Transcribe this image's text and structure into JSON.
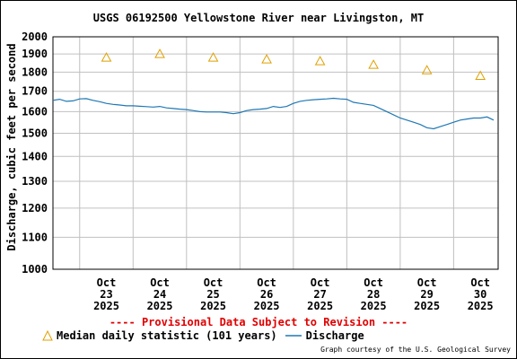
{
  "chart_data": {
    "type": "line",
    "title": "USGS 06192500 Yellowstone River near Livingston, MT",
    "ylabel": "Discharge, cubic feet per second",
    "xlabel": "",
    "y_scale": "log",
    "ylim": [
      1000,
      2000
    ],
    "y_ticks": [
      1000,
      1100,
      1200,
      1300,
      1400,
      1500,
      1600,
      1700,
      1800,
      1900,
      2000
    ],
    "x_ticks": [
      {
        "date": "Oct 23 2025",
        "month": "Oct",
        "day": "23",
        "year": "2025"
      },
      {
        "date": "Oct 24 2025",
        "month": "Oct",
        "day": "24",
        "year": "2025"
      },
      {
        "date": "Oct 25 2025",
        "month": "Oct",
        "day": "25",
        "year": "2025"
      },
      {
        "date": "Oct 26 2025",
        "month": "Oct",
        "day": "26",
        "year": "2025"
      },
      {
        "date": "Oct 27 2025",
        "month": "Oct",
        "day": "27",
        "year": "2025"
      },
      {
        "date": "Oct 28 2025",
        "month": "Oct",
        "day": "28",
        "year": "2025"
      },
      {
        "date": "Oct 29 2025",
        "month": "Oct",
        "day": "29",
        "year": "2025"
      },
      {
        "date": "Oct 30 2025",
        "month": "Oct",
        "day": "30",
        "year": "2025"
      }
    ],
    "grid": true,
    "series": [
      {
        "name": "Median daily statistic (101 years)",
        "kind": "scatter",
        "marker": "triangle",
        "color": "#e0a000",
        "x": [
          "2025-10-23 12:00",
          "2025-10-24 12:00",
          "2025-10-25 12:00",
          "2025-10-26 12:00",
          "2025-10-27 12:00",
          "2025-10-28 12:00",
          "2025-10-29 12:00",
          "2025-10-30 12:00"
        ],
        "values": [
          1880,
          1900,
          1880,
          1870,
          1860,
          1840,
          1810,
          1780
        ]
      },
      {
        "name": "Discharge",
        "kind": "line",
        "color": "#1f78b4",
        "x": [
          "2025-10-22 12:00",
          "2025-10-22 15:00",
          "2025-10-22 18:00",
          "2025-10-22 21:00",
          "2025-10-23 00:00",
          "2025-10-23 03:00",
          "2025-10-23 06:00",
          "2025-10-23 09:00",
          "2025-10-23 12:00",
          "2025-10-23 15:00",
          "2025-10-23 18:00",
          "2025-10-23 21:00",
          "2025-10-24 00:00",
          "2025-10-24 03:00",
          "2025-10-24 06:00",
          "2025-10-24 09:00",
          "2025-10-24 12:00",
          "2025-10-24 15:00",
          "2025-10-24 18:00",
          "2025-10-24 21:00",
          "2025-10-25 00:00",
          "2025-10-25 03:00",
          "2025-10-25 06:00",
          "2025-10-25 09:00",
          "2025-10-25 12:00",
          "2025-10-25 15:00",
          "2025-10-25 18:00",
          "2025-10-25 21:00",
          "2025-10-26 00:00",
          "2025-10-26 03:00",
          "2025-10-26 06:00",
          "2025-10-26 09:00",
          "2025-10-26 12:00",
          "2025-10-26 15:00",
          "2025-10-26 18:00",
          "2025-10-26 21:00",
          "2025-10-27 00:00",
          "2025-10-27 03:00",
          "2025-10-27 06:00",
          "2025-10-27 09:00",
          "2025-10-27 12:00",
          "2025-10-27 15:00",
          "2025-10-27 18:00",
          "2025-10-27 21:00",
          "2025-10-28 00:00",
          "2025-10-28 03:00",
          "2025-10-28 06:00",
          "2025-10-28 09:00",
          "2025-10-28 12:00",
          "2025-10-28 15:00",
          "2025-10-28 18:00",
          "2025-10-28 21:00",
          "2025-10-29 00:00",
          "2025-10-29 03:00",
          "2025-10-29 06:00",
          "2025-10-29 09:00",
          "2025-10-29 12:00",
          "2025-10-29 15:00",
          "2025-10-29 18:00",
          "2025-10-29 21:00",
          "2025-10-30 00:00",
          "2025-10-30 03:00",
          "2025-10-30 06:00",
          "2025-10-30 09:00",
          "2025-10-30 12:00",
          "2025-10-30 15:00",
          "2025-10-30 18:00"
        ],
        "values": [
          1655,
          1660,
          1650,
          1652,
          1662,
          1663,
          1655,
          1648,
          1640,
          1635,
          1632,
          1628,
          1628,
          1626,
          1624,
          1622,
          1625,
          1618,
          1615,
          1612,
          1610,
          1605,
          1600,
          1598,
          1598,
          1598,
          1595,
          1590,
          1595,
          1605,
          1610,
          1612,
          1615,
          1625,
          1620,
          1625,
          1640,
          1650,
          1655,
          1658,
          1660,
          1662,
          1665,
          1662,
          1660,
          1645,
          1640,
          1635,
          1630,
          1615,
          1600,
          1585,
          1570,
          1560,
          1550,
          1540,
          1525,
          1520,
          1530,
          1540,
          1550,
          1560,
          1565,
          1570,
          1570,
          1575,
          1560
        ]
      }
    ]
  },
  "notice": "---- Provisional Data Subject to Revision ----",
  "legend": {
    "median_label": "Median daily statistic (101 years)",
    "discharge_label": "Discharge"
  },
  "credit": "Graph courtesy of the U.S. Geological Survey",
  "colors": {
    "median": "#e0a000",
    "discharge": "#1f78b4",
    "grid": "#c0c0c0",
    "notice": "#e00000"
  }
}
